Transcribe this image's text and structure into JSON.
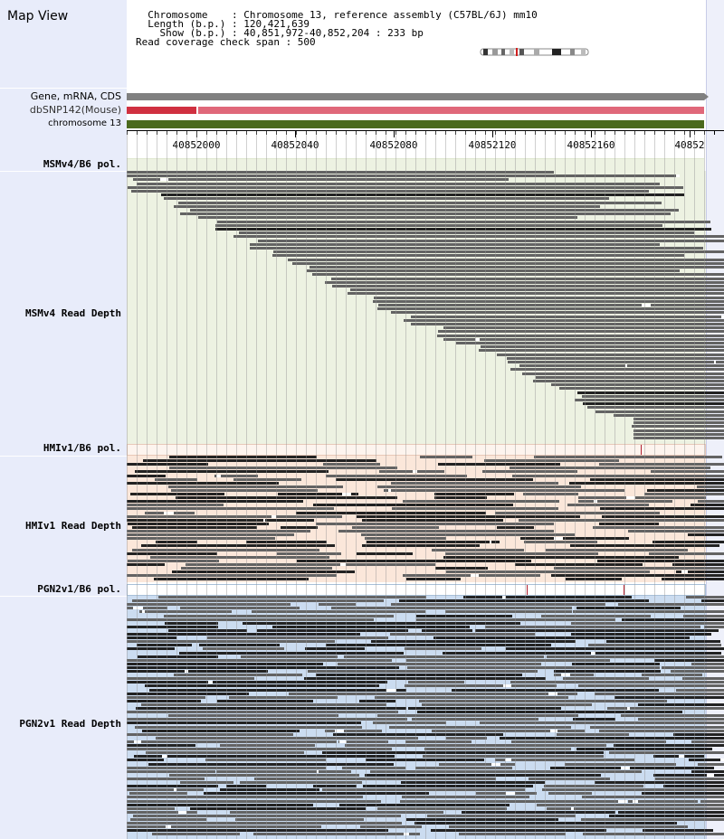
{
  "header": {
    "title": "Map View",
    "info_lines": [
      "  Chromosome    : Chromosome 13, reference assembly (C57BL/6J) mm10",
      "  Length (b.p.) : 120,421,639",
      "    Show (b.p.) : 40,851,972-40,852,204 : 233 bp",
      "Read coverage check span : 500"
    ]
  },
  "tracks": {
    "gene": "Gene, mRNA, CDS",
    "snp": "dbSNP142(Mouse)",
    "chromosome": "chromosome 13",
    "msm_pol": "MSMv4/B6 pol.",
    "msm_depth": "MSMv4 Read Depth",
    "hmi_pol": "HMIv1/B6 pol.",
    "hmi_depth": "HMIv1 Read Depth",
    "pgn_pol": "PGN2v1/B6 pol.",
    "pgn_depth": "PGN2v1 Read Depth"
  },
  "ruler": {
    "labels": [
      "40852000",
      "40852040",
      "40852080",
      "40852120",
      "40852160",
      "40852"
    ]
  },
  "colors": {
    "msm_bg": "#edf2e2",
    "hmi_bg": "#fbe7da",
    "pgn_bg": "#cbdcf0",
    "read_gray": "#636363",
    "read_dark": "#222222",
    "pol_marker": "#b02030"
  }
}
